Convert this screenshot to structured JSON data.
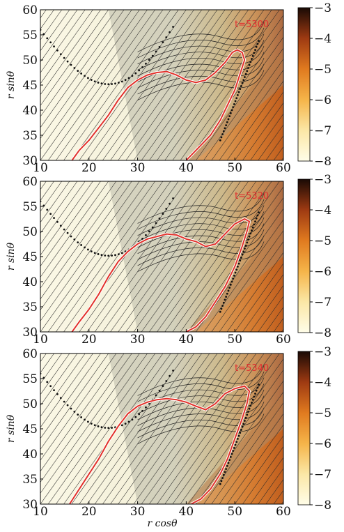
{
  "chart_data": [
    {
      "type": "heatmap",
      "annotation": "t=5300",
      "xlabel": "",
      "ylabel": "r sinθ",
      "xlim": [
        10,
        60
      ],
      "ylim": [
        30,
        60
      ],
      "xticks": [
        10,
        20,
        30,
        40,
        50,
        60
      ],
      "yticks": [
        30,
        35,
        40,
        45,
        50,
        55,
        60
      ],
      "colorbar": {
        "range": [
          -8,
          -3
        ],
        "ticks": [
          -3,
          -4,
          -5,
          -6,
          -7,
          -8
        ]
      },
      "boundary_curve": [
        [
          16.5,
          30
        ],
        [
          18,
          32
        ],
        [
          20,
          34
        ],
        [
          22,
          36.5
        ],
        [
          24,
          39
        ],
        [
          26,
          42
        ],
        [
          28,
          44.5
        ],
        [
          30,
          46
        ],
        [
          32,
          47
        ],
        [
          34,
          47.5
        ],
        [
          36,
          47.7
        ],
        [
          38,
          47
        ],
        [
          40,
          46
        ],
        [
          42,
          45.5
        ],
        [
          44,
          46
        ],
        [
          46,
          47.5
        ],
        [
          48,
          49.5
        ],
        [
          49.5,
          51.5
        ],
        [
          50.5,
          52
        ],
        [
          51.5,
          51.5
        ],
        [
          52,
          50
        ],
        [
          51,
          47
        ],
        [
          50,
          44
        ],
        [
          48.5,
          41
        ],
        [
          47,
          38
        ],
        [
          45,
          35
        ],
        [
          43,
          33
        ],
        [
          41,
          31
        ],
        [
          40,
          30
        ]
      ]
    },
    {
      "type": "heatmap",
      "annotation": "t=5320",
      "xlabel": "",
      "ylabel": "r sinθ",
      "xlim": [
        10,
        60
      ],
      "ylim": [
        30,
        60
      ],
      "xticks": [
        10,
        20,
        30,
        40,
        50,
        60
      ],
      "yticks": [
        30,
        35,
        40,
        45,
        50,
        55,
        60
      ],
      "colorbar": {
        "range": [
          -8,
          -3
        ],
        "ticks": [
          -3,
          -4,
          -5,
          -6,
          -7,
          -8
        ]
      },
      "boundary_curve": [
        [
          16.5,
          30
        ],
        [
          18,
          32
        ],
        [
          20,
          34.5
        ],
        [
          22,
          37.5
        ],
        [
          24,
          41
        ],
        [
          26,
          44
        ],
        [
          28,
          46
        ],
        [
          30,
          47.5
        ],
        [
          32,
          48.5
        ],
        [
          34,
          49
        ],
        [
          36,
          49.5
        ],
        [
          38,
          49.3
        ],
        [
          40,
          48.5
        ],
        [
          42,
          48
        ],
        [
          44,
          47
        ],
        [
          46,
          47.5
        ],
        [
          48,
          49.5
        ],
        [
          50,
          51.5
        ],
        [
          52,
          52.5
        ],
        [
          53,
          52
        ],
        [
          52.5,
          50
        ],
        [
          51.5,
          47
        ],
        [
          50,
          43
        ],
        [
          48,
          39
        ],
        [
          46,
          36
        ],
        [
          44,
          33
        ],
        [
          42,
          31
        ],
        [
          40,
          30
        ]
      ]
    },
    {
      "type": "heatmap",
      "annotation": "t=5340",
      "xlabel": "r cosθ",
      "ylabel": "r sinθ",
      "xlim": [
        10,
        60
      ],
      "ylim": [
        30,
        60
      ],
      "xticks": [
        10,
        20,
        30,
        40,
        50,
        60
      ],
      "yticks": [
        30,
        35,
        40,
        45,
        50,
        55,
        60
      ],
      "colorbar": {
        "range": [
          -8,
          -3
        ],
        "ticks": [
          -3,
          -4,
          -5,
          -6,
          -7,
          -8
        ]
      },
      "boundary_curve": [
        [
          16,
          30
        ],
        [
          18,
          33
        ],
        [
          20,
          36
        ],
        [
          22,
          39
        ],
        [
          24,
          42.5
        ],
        [
          26,
          45.5
        ],
        [
          28,
          48
        ],
        [
          30,
          49.5
        ],
        [
          32,
          50.3
        ],
        [
          34,
          50.8
        ],
        [
          36,
          51
        ],
        [
          38,
          50.8
        ],
        [
          40,
          50.3
        ],
        [
          42,
          49.5
        ],
        [
          44,
          48.8
        ],
        [
          46,
          50
        ],
        [
          48,
          52
        ],
        [
          50,
          53
        ],
        [
          52,
          53.5
        ],
        [
          53,
          52.5
        ],
        [
          52.5,
          50
        ],
        [
          51.5,
          47
        ],
        [
          50,
          43
        ],
        [
          48.5,
          39
        ],
        [
          47,
          36
        ],
        [
          45,
          33
        ],
        [
          43,
          31
        ],
        [
          41,
          30
        ]
      ]
    }
  ]
}
